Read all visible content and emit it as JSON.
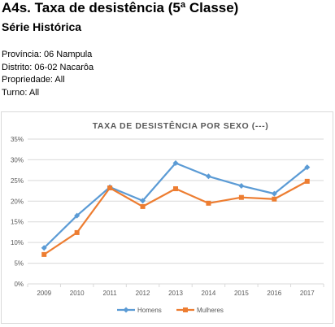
{
  "page": {
    "title": "A4s. Taxa de desistência (5ª Classe)",
    "subtitle": "Série Histórica"
  },
  "filters": [
    "Província: 06 Nampula",
    "Distrito: 06-02 Nacarôa",
    "Propriedade: All",
    "Turno: All"
  ],
  "colors": {
    "homens": "#5B9BD5",
    "mulheres": "#ED7D31",
    "grid": "#d9d9d9",
    "axis_text": "#595959"
  },
  "chart_data": {
    "type": "line",
    "title": "TAXA DE DESISTÊNCIA POR SEXO (---)",
    "xlabel": "",
    "ylabel": "",
    "categories": [
      "2009",
      "2010",
      "2011",
      "2012",
      "2013",
      "2014",
      "2015",
      "2016",
      "2017"
    ],
    "y_ticks": [
      "0%",
      "5%",
      "10%",
      "15%",
      "20%",
      "25%",
      "30%",
      "35%"
    ],
    "ylim": [
      0,
      35
    ],
    "grid": true,
    "legend_position": "bottom",
    "series": [
      {
        "name": "Homens",
        "marker": "diamond",
        "values": [
          8.7,
          16.5,
          23.4,
          20.1,
          29.2,
          26.0,
          23.7,
          21.8,
          28.2
        ]
      },
      {
        "name": "Mulheres",
        "marker": "square",
        "values": [
          7.1,
          12.4,
          23.2,
          18.7,
          23.0,
          19.5,
          20.9,
          20.5,
          24.8
        ]
      }
    ]
  }
}
